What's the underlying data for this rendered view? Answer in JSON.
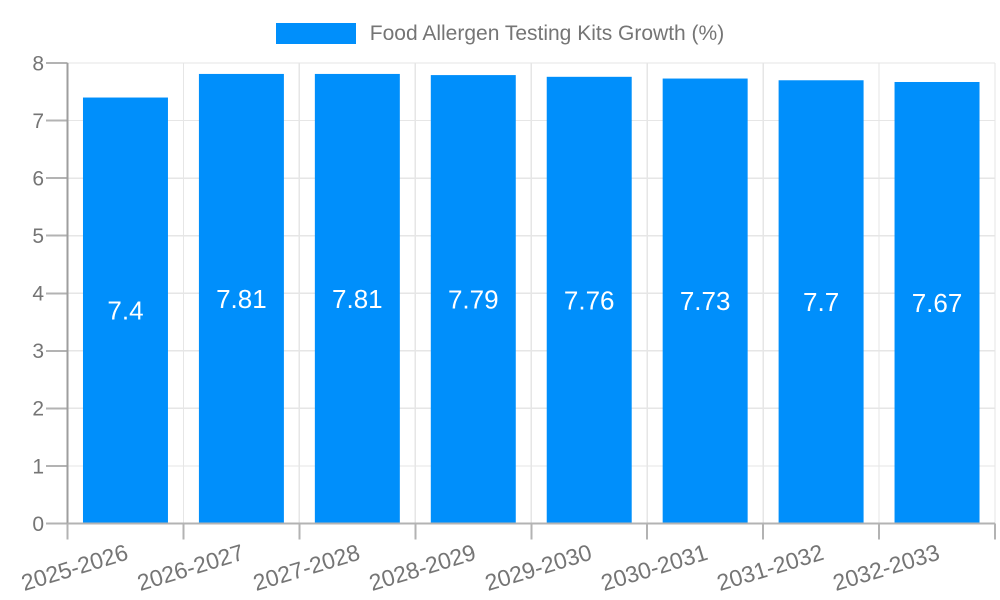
{
  "legend": {
    "label": "Food Allergen Testing Kits Growth (%)"
  },
  "chart_data": {
    "type": "bar",
    "title": "Food Allergen Testing Kits Growth (%)",
    "categories": [
      "2025-2026",
      "2026-2027",
      "2027-2028",
      "2028-2029",
      "2029-2030",
      "2030-2031",
      "2031-2032",
      "2032-2033"
    ],
    "series": [
      {
        "name": "Food Allergen Testing Kits Growth (%)",
        "values": [
          7.4,
          7.81,
          7.81,
          7.79,
          7.76,
          7.73,
          7.7,
          7.67
        ]
      }
    ],
    "values": [
      7.4,
      7.81,
      7.81,
      7.79,
      7.76,
      7.73,
      7.7,
      7.67
    ],
    "bar_labels": [
      "7.4",
      "7.81",
      "7.81",
      "7.79",
      "7.76",
      "7.73",
      "7.7",
      "7.67"
    ],
    "xlabel": "",
    "ylabel": "",
    "ylim": [
      0,
      8
    ],
    "yticks": [
      0,
      1,
      2,
      3,
      4,
      5,
      6,
      7,
      8
    ],
    "grid": true,
    "legend_position": "top-center",
    "x_label_rotation_deg": -17,
    "colors": {
      "bar": "#008FFB",
      "bar_label": "#ffffff",
      "axis_text": "#757575",
      "grid": "#e6e6e6",
      "tick": "#b3b3b3",
      "y_axis": "#9e9e9e",
      "x_axis": "#b3b3b3",
      "background": "#ffffff"
    }
  }
}
